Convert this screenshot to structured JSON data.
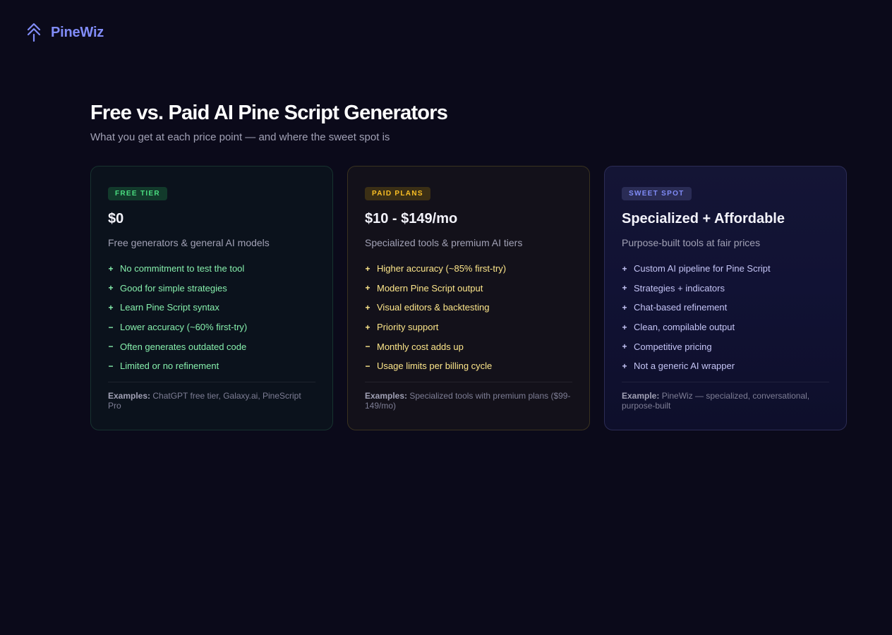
{
  "brand": {
    "name": "PineWiz",
    "logo_icon": "pine-tree-arrow-icon",
    "color": "#818cf8"
  },
  "page": {
    "title": "Free vs. Paid AI Pine Script Generators",
    "subtitle": "What you get at each price point — and where the sweet spot is"
  },
  "cards": [
    {
      "badge": "FREE TIER",
      "price": "$0",
      "description": "Free generators & general AI models",
      "features": [
        {
          "marker": "+",
          "text": "No commitment to test the tool"
        },
        {
          "marker": "+",
          "text": "Good for simple strategies"
        },
        {
          "marker": "+",
          "text": "Learn Pine Script syntax"
        },
        {
          "marker": "−",
          "text": "Lower accuracy (~60% first-try)"
        },
        {
          "marker": "−",
          "text": "Often generates outdated code"
        },
        {
          "marker": "−",
          "text": "Limited or no refinement"
        }
      ],
      "examples_label": "Examples:",
      "examples_text": "ChatGPT free tier, Galaxy.ai, PineScript Pro",
      "accent": "#4ade80"
    },
    {
      "badge": "PAID PLANS",
      "price": "$10 - $149/mo",
      "description": "Specialized tools & premium AI tiers",
      "features": [
        {
          "marker": "+",
          "text": "Higher accuracy (~85% first-try)"
        },
        {
          "marker": "+",
          "text": "Modern Pine Script output"
        },
        {
          "marker": "+",
          "text": "Visual editors & backtesting"
        },
        {
          "marker": "+",
          "text": "Priority support"
        },
        {
          "marker": "−",
          "text": "Monthly cost adds up"
        },
        {
          "marker": "−",
          "text": "Usage limits per billing cycle"
        }
      ],
      "examples_label": "Examples:",
      "examples_text": "Specialized tools with premium plans ($99-149/mo)",
      "accent": "#fbbf24"
    },
    {
      "badge": "SWEET SPOT",
      "price": "Specialized + Affordable",
      "description": "Purpose-built tools at fair prices",
      "features": [
        {
          "marker": "+",
          "text": "Custom AI pipeline for Pine Script"
        },
        {
          "marker": "+",
          "text": "Strategies + indicators"
        },
        {
          "marker": "+",
          "text": "Chat-based refinement"
        },
        {
          "marker": "+",
          "text": "Clean, compilable output"
        },
        {
          "marker": "+",
          "text": "Competitive pricing"
        },
        {
          "marker": "+",
          "text": "Not a generic AI wrapper"
        }
      ],
      "examples_label": "Example:",
      "examples_text": "PineWiz — specialized, conversational, purpose-built",
      "accent": "#818cf8"
    }
  ]
}
